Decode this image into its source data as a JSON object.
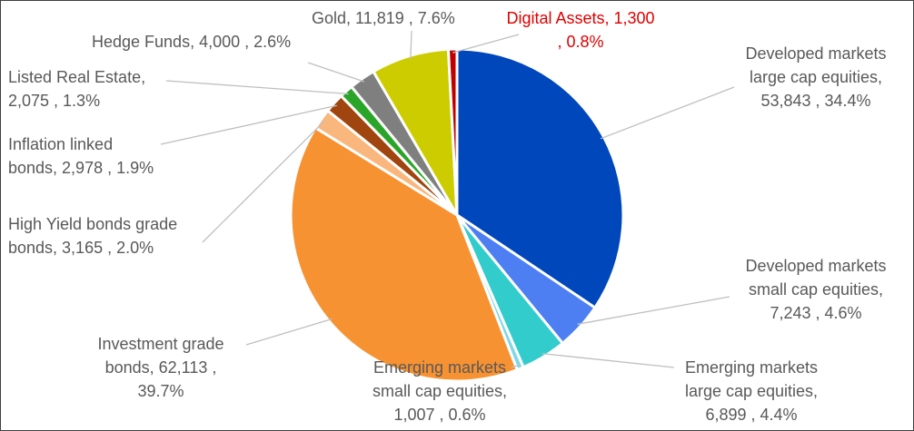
{
  "chart_data": {
    "type": "pie",
    "title": "",
    "slices": [
      {
        "name": "Developed markets large cap equities",
        "value": 53843,
        "percent": 34.4,
        "color": "#0047bb",
        "label_lines": [
          "Developed markets",
          "large cap equities,",
          "53,843 , 34.4%"
        ]
      },
      {
        "name": "Developed markets small cap equities",
        "value": 7243,
        "percent": 4.6,
        "color": "#4d7ff2",
        "label_lines": [
          "Developed markets",
          "small cap equities,",
          "7,243 , 4.6%"
        ]
      },
      {
        "name": "Emerging markets large cap equities",
        "value": 6899,
        "percent": 4.4,
        "color": "#33cccc",
        "label_lines": [
          "Emerging markets",
          "large cap equities,",
          "6,899 , 4.4%"
        ]
      },
      {
        "name": "Emerging markets small cap equities",
        "value": 1007,
        "percent": 0.6,
        "color": "#7fd8e6",
        "label_lines": [
          "Emerging markets",
          "small cap equities,",
          "1,007 , 0.6%"
        ]
      },
      {
        "name": "Investment grade bonds",
        "value": 62113,
        "percent": 39.7,
        "color": "#f79232",
        "label_lines": [
          "Investment grade",
          "bonds,  62,113 ,",
          "39.7%"
        ]
      },
      {
        "name": "High Yield bonds grade bonds",
        "value": 3165,
        "percent": 2.0,
        "color": "#f9b77e",
        "label_lines": [
          "High Yield bonds grade",
          "bonds,  3,165 , 2.0%"
        ]
      },
      {
        "name": "Inflation linked bonds",
        "value": 2978,
        "percent": 1.9,
        "color": "#a0450f",
        "label_lines": [
          "Inflation linked",
          "bonds,  2,978 , 1.9%"
        ]
      },
      {
        "name": "Listed Real Estate",
        "value": 2075,
        "percent": 1.3,
        "color": "#2aa52a",
        "label_lines": [
          "Listed Real Estate,",
          "2,075 , 1.3%"
        ]
      },
      {
        "name": "Hedge Funds",
        "value": 4000,
        "percent": 2.6,
        "color": "#7f7f7f",
        "label_lines": [
          "Hedge Funds,  4,000 , 2.6%"
        ]
      },
      {
        "name": "Gold",
        "value": 11819,
        "percent": 7.6,
        "color": "#cccc00",
        "label_lines": [
          "Gold,  11,819 , 7.6%"
        ]
      },
      {
        "name": "Digital Assets",
        "value": 1300,
        "percent": 0.8,
        "color": "#c00000",
        "label_color": "#e00000",
        "label_lines": [
          "Digital Assets,  1,300",
          ", 0.8%"
        ]
      }
    ],
    "legend": "none",
    "label_style": "outside-with-leader-lines"
  },
  "colors": {
    "label_text": "#595959",
    "leader_line": "#bfbfbf",
    "frame_border": "#404040"
  }
}
